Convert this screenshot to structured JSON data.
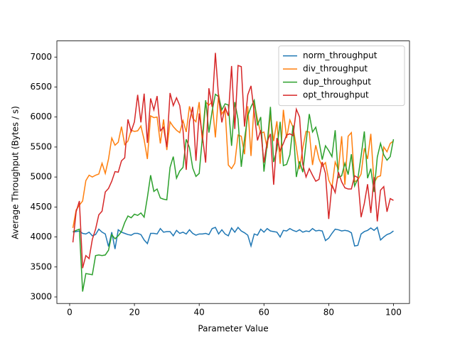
{
  "chart_data": {
    "type": "line",
    "xlabel": "Parameter Value",
    "ylabel": "Average Throughput (Bytes / s)",
    "x": [
      1,
      2,
      3,
      4,
      5,
      6,
      7,
      8,
      9,
      10,
      11,
      12,
      13,
      14,
      15,
      16,
      17,
      18,
      19,
      20,
      21,
      22,
      23,
      24,
      25,
      26,
      27,
      28,
      29,
      30,
      31,
      32,
      33,
      34,
      35,
      36,
      37,
      38,
      39,
      40,
      41,
      42,
      43,
      44,
      45,
      46,
      47,
      48,
      49,
      50,
      51,
      52,
      53,
      54,
      55,
      56,
      57,
      58,
      59,
      60,
      61,
      62,
      63,
      64,
      65,
      66,
      67,
      68,
      69,
      70,
      71,
      72,
      73,
      74,
      75,
      76,
      77,
      78,
      79,
      80,
      81,
      82,
      83,
      84,
      85,
      86,
      87,
      88,
      89,
      90,
      91,
      92,
      93,
      94,
      95,
      96,
      97,
      98,
      99,
      100
    ],
    "xlim": [
      -3.95,
      104.95
    ],
    "xticks": [
      0,
      20,
      40,
      60,
      80,
      100
    ],
    "ylim": [
      2891,
      7269
    ],
    "yticks": [
      3000,
      3500,
      4000,
      4500,
      5000,
      5500,
      6000,
      6500,
      7000
    ],
    "grid": false,
    "legend": "upper right",
    "series": [
      {
        "name": "norm_throughput",
        "color": "#1f77b4",
        "values": [
          4080,
          4090,
          4100,
          4060,
          4050,
          4080,
          4020,
          4040,
          4130,
          4080,
          4050,
          3840,
          4080,
          3800,
          4120,
          4080,
          4060,
          4040,
          4030,
          4060,
          4060,
          4040,
          3950,
          3890,
          4060,
          4060,
          4050,
          4140,
          4080,
          4090,
          4090,
          4020,
          4110,
          4060,
          4080,
          4050,
          4120,
          4060,
          4030,
          4050,
          4050,
          4060,
          4040,
          4140,
          4160,
          4050,
          4120,
          4050,
          4020,
          4150,
          4080,
          4160,
          4100,
          4070,
          4030,
          3850,
          4050,
          4030,
          4130,
          4080,
          4140,
          4100,
          4090,
          4080,
          4000,
          4110,
          4100,
          4140,
          4110,
          4090,
          4120,
          4080,
          4100,
          4090,
          4140,
          4100,
          4110,
          4100,
          3940,
          3980,
          4060,
          4130,
          4120,
          4100,
          4110,
          4100,
          4070,
          3850,
          3860,
          4050,
          4090,
          4110,
          4150,
          4110,
          4160,
          3950,
          4000,
          4040,
          4060,
          4100
        ]
      },
      {
        "name": "div_throughput",
        "color": "#ff7f0e",
        "values": [
          4150,
          4450,
          4530,
          4600,
          4940,
          5030,
          5000,
          5030,
          5050,
          5230,
          5060,
          5300,
          5650,
          5530,
          5580,
          5840,
          5540,
          5600,
          5780,
          5760,
          5770,
          5850,
          5620,
          5300,
          6020,
          5990,
          6000,
          5560,
          5960,
          5450,
          5920,
          5840,
          5780,
          5740,
          5940,
          5750,
          6180,
          5980,
          5920,
          6250,
          5570,
          6250,
          6200,
          6250,
          5660,
          6380,
          6050,
          6130,
          5200,
          5140,
          5230,
          5700,
          5680,
          5380,
          6180,
          5350,
          6250,
          5960,
          5730,
          5750,
          5480,
          6050,
          5600,
          5930,
          5220,
          6120,
          5650,
          5950,
          5830,
          5500,
          5130,
          5490,
          5760,
          5750,
          5200,
          5530,
          5300,
          5180,
          5240,
          4950,
          4830,
          5250,
          5120,
          5680,
          4870,
          5680,
          5740,
          4920,
          4950,
          5050,
          5480,
          5300,
          5720,
          4900,
          5000,
          5020,
          5500,
          5420,
          5560,
          5600
        ]
      },
      {
        "name": "dup_throughput",
        "color": "#2ca02c",
        "values": [
          4090,
          4110,
          4130,
          3090,
          3390,
          3380,
          3370,
          3690,
          3700,
          3690,
          3700,
          3780,
          4040,
          3970,
          4020,
          4090,
          4240,
          4350,
          4320,
          4380,
          4360,
          4400,
          4330,
          4660,
          5030,
          4760,
          4800,
          4650,
          4630,
          4620,
          5160,
          5340,
          4980,
          5100,
          5160,
          5630,
          5490,
          5150,
          5010,
          5060,
          5670,
          6280,
          5740,
          6100,
          6380,
          6340,
          6120,
          6220,
          6200,
          5520,
          6250,
          5960,
          5170,
          5630,
          6020,
          6170,
          6280,
          5860,
          6000,
          5090,
          5550,
          6170,
          5250,
          5460,
          5920,
          5190,
          5210,
          5370,
          5860,
          5000,
          5260,
          5080,
          5570,
          6050,
          5750,
          5830,
          5600,
          5290,
          5520,
          5440,
          5340,
          5780,
          4990,
          5020,
          5230,
          5040,
          5380,
          4850,
          4970,
          5350,
          5760,
          4980,
          5140,
          4750,
          5330,
          5560,
          5370,
          5280,
          5340,
          5630
        ]
      },
      {
        "name": "opt_throughput",
        "color": "#d62728",
        "values": [
          3910,
          4420,
          4600,
          3480,
          3690,
          3640,
          3960,
          4130,
          4370,
          4430,
          4750,
          4810,
          4930,
          5090,
          5080,
          5270,
          5320,
          5960,
          5760,
          5920,
          6370,
          5910,
          6390,
          5570,
          6310,
          6120,
          6350,
          5770,
          5830,
          5500,
          6400,
          6190,
          6320,
          6190,
          5780,
          5120,
          5920,
          6170,
          5270,
          6060,
          5680,
          5240,
          6480,
          6170,
          7070,
          6320,
          5910,
          6160,
          6020,
          6850,
          5800,
          6860,
          6840,
          5840,
          6370,
          6520,
          6070,
          5610,
          5780,
          5240,
          5590,
          5720,
          4870,
          5650,
          5440,
          5560,
          5700,
          5720,
          5690,
          6130,
          6000,
          5210,
          5000,
          5140,
          5030,
          4930,
          4960,
          5250,
          5060,
          4300,
          4870,
          4740,
          5080,
          4920,
          4820,
          4800,
          4800,
          5020,
          4990,
          4330,
          4560,
          4880,
          4400,
          5000,
          4260,
          4780,
          4840,
          4420,
          4640,
          4610
        ]
      }
    ]
  }
}
